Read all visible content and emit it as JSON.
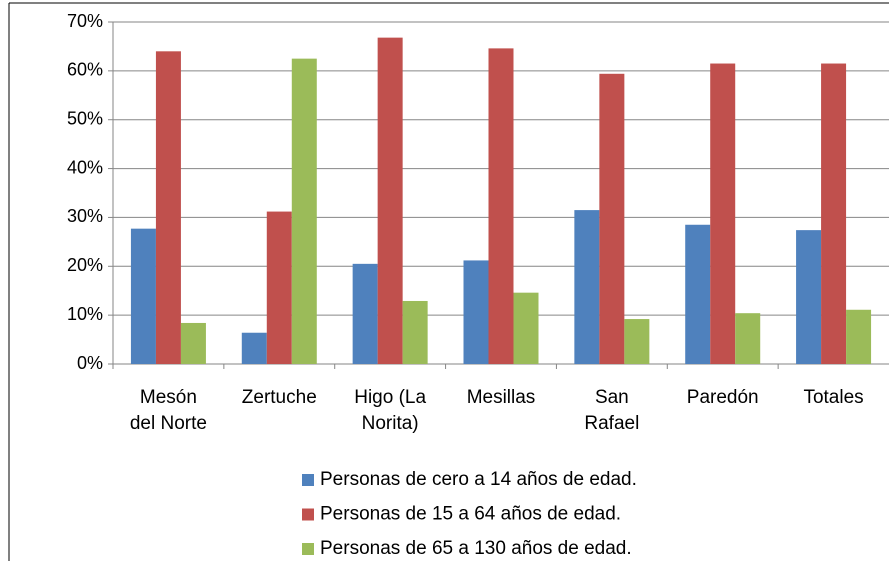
{
  "chart_data": {
    "type": "bar",
    "categories": [
      "Mesón\ndel Norte",
      "Zertuche",
      "Higo (La\nNorita)",
      "Mesillas",
      "San\nRafael",
      "Paredón",
      "Totales"
    ],
    "series": [
      {
        "name": "Personas de cero a 14 años de edad.",
        "color": "#4f81bd",
        "values": [
          27.7,
          6.4,
          20.5,
          21.2,
          31.5,
          28.5,
          27.4
        ]
      },
      {
        "name": "Personas de 15 a 64 años de edad.",
        "color": "#c0504d",
        "values": [
          64,
          31.2,
          66.8,
          64.6,
          59.4,
          61.5,
          61.5
        ]
      },
      {
        "name": "Personas de 65 a 130 años de edad.",
        "color": "#9bbb59",
        "values": [
          8.4,
          62.5,
          12.9,
          14.6,
          9.2,
          10.4,
          11.1
        ]
      }
    ],
    "ylim": [
      0,
      70
    ],
    "yticks": [
      {
        "value": 0,
        "label": "0%"
      },
      {
        "value": 10,
        "label": "10%"
      },
      {
        "value": 20,
        "label": "20%"
      },
      {
        "value": 30,
        "label": "30%"
      },
      {
        "value": 40,
        "label": "40%"
      },
      {
        "value": 50,
        "label": "50%"
      },
      {
        "value": 60,
        "label": "60%"
      },
      {
        "value": 70,
        "label": "70%"
      }
    ],
    "grid": true
  }
}
